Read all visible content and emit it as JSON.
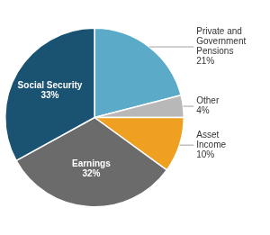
{
  "chart_data": {
    "type": "pie",
    "categories": [
      "Private and\nGovernment\nPensions",
      "Other",
      "Asset\nIncome",
      "Earnings",
      "Social Security"
    ],
    "values": [
      21,
      4,
      10,
      32,
      33
    ],
    "value_labels": [
      "21%",
      "4%",
      "10%",
      "32%",
      "33%"
    ],
    "colors": [
      "#5aaac8",
      "#b8b8b8",
      "#f0a020",
      "#6b6b6b",
      "#1a5272"
    ],
    "data_labels": true
  }
}
